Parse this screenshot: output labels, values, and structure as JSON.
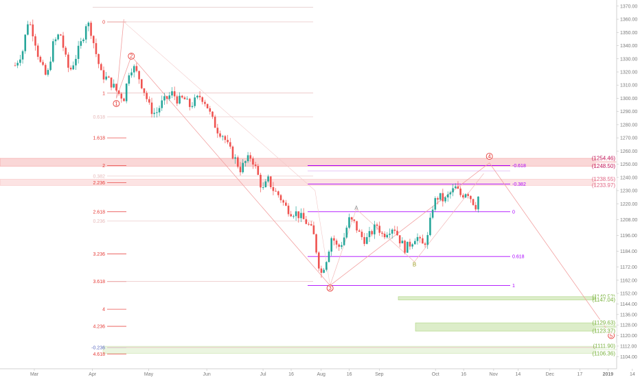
{
  "chart_data": {
    "type": "candlestick",
    "title": "",
    "xlabel": "",
    "ylabel": "",
    "ylim": [
      1100,
      1372
    ],
    "grid": false,
    "y_ticks": [
      1104,
      1112,
      1120,
      1128,
      1136,
      1144,
      1152,
      1162,
      1172,
      1184,
      1196,
      1208,
      1220,
      1230,
      1240,
      1250,
      1260,
      1270,
      1280,
      1290,
      1300,
      1310,
      1320,
      1330,
      1340,
      1350,
      1360,
      1370
    ],
    "y_tick_labels": [
      "1104.00",
      "1112.00",
      "1120.00",
      "1128.00",
      "1136.00",
      "1144.00",
      "1152.00",
      "1162.00",
      "1172.00",
      "1184.00",
      "1196.00",
      "1208.00",
      "1220.00",
      "1230.00",
      "1240.00",
      "1250.00",
      "1260.00",
      "1270.00",
      "1280.00",
      "1290.00",
      "1300.00",
      "1310.00",
      "1320.00",
      "1330.00",
      "1340.00",
      "1350.00",
      "1360.00",
      "1370.00"
    ],
    "x_labels": [
      {
        "label": "Mar",
        "day": 0
      },
      {
        "label": "Apr",
        "day": 31
      },
      {
        "label": "May",
        "day": 61
      },
      {
        "label": "Jun",
        "day": 92
      },
      {
        "label": "Jul",
        "day": 122
      },
      {
        "label": "16",
        "day": 137
      },
      {
        "label": "Aug",
        "day": 153
      },
      {
        "label": "16",
        "day": 168
      },
      {
        "label": "Sep",
        "day": 184
      },
      {
        "label": "Oct",
        "day": 214
      },
      {
        "label": "16",
        "day": 229
      },
      {
        "label": "Nov",
        "day": 245
      },
      {
        "label": "14",
        "day": 258
      },
      {
        "label": "Dec",
        "day": 275
      },
      {
        "label": "17",
        "day": 291
      },
      {
        "label": "2019",
        "day": 306
      },
      {
        "label": "14",
        "day": 319
      }
    ],
    "price_path": [
      [
        0,
        1325
      ],
      [
        4,
        1336
      ],
      [
        7,
        1360
      ],
      [
        10,
        1348
      ],
      [
        13,
        1328
      ],
      [
        17,
        1315
      ],
      [
        20,
        1340
      ],
      [
        24,
        1350
      ],
      [
        27,
        1330
      ],
      [
        29,
        1320
      ],
      [
        32,
        1330
      ],
      [
        36,
        1345
      ],
      [
        38,
        1358
      ],
      [
        40,
        1354
      ],
      [
        43,
        1335
      ],
      [
        46,
        1318
      ],
      [
        49,
        1315
      ],
      [
        52,
        1310
      ],
      [
        55,
        1304
      ],
      [
        58,
        1300
      ],
      [
        61,
        1322
      ],
      [
        63,
        1324
      ],
      [
        66,
        1316
      ],
      [
        69,
        1305
      ],
      [
        72,
        1292
      ],
      [
        75,
        1288
      ],
      [
        78,
        1296
      ],
      [
        81,
        1300
      ],
      [
        84,
        1304
      ],
      [
        87,
        1298
      ],
      [
        90,
        1300
      ],
      [
        93,
        1294
      ],
      [
        96,
        1298
      ],
      [
        99,
        1302
      ],
      [
        102,
        1296
      ],
      [
        105,
        1284
      ],
      [
        108,
        1276
      ],
      [
        111,
        1272
      ],
      [
        114,
        1262
      ],
      [
        117,
        1255
      ],
      [
        120,
        1246
      ],
      [
        123,
        1252
      ],
      [
        126,
        1256
      ],
      [
        129,
        1244
      ],
      [
        132,
        1230
      ],
      [
        135,
        1238
      ],
      [
        138,
        1230
      ],
      [
        141,
        1226
      ],
      [
        144,
        1218
      ],
      [
        147,
        1214
      ],
      [
        150,
        1213
      ],
      [
        153,
        1209
      ],
      [
        156,
        1205
      ],
      [
        159,
        1198
      ],
      [
        161,
        1182
      ],
      [
        163,
        1166
      ],
      [
        166,
        1178
      ],
      [
        169,
        1196
      ],
      [
        172,
        1186
      ],
      [
        175,
        1192
      ],
      [
        178,
        1208
      ],
      [
        181,
        1205
      ],
      [
        184,
        1196
      ],
      [
        187,
        1192
      ],
      [
        190,
        1198
      ],
      [
        193,
        1204
      ],
      [
        196,
        1196
      ],
      [
        199,
        1200
      ],
      [
        202,
        1203
      ],
      [
        205,
        1193
      ],
      [
        208,
        1186
      ],
      [
        211,
        1190
      ],
      [
        214,
        1196
      ],
      [
        217,
        1188
      ],
      [
        220,
        1194
      ],
      [
        223,
        1220
      ],
      [
        226,
        1226
      ],
      [
        229,
        1222
      ],
      [
        232,
        1228
      ],
      [
        235,
        1232
      ],
      [
        238,
        1226
      ],
      [
        241,
        1230
      ],
      [
        244,
        1222
      ],
      [
        246,
        1218
      ],
      [
        248,
        1232
      ]
    ],
    "fib_extension_labels": [
      {
        "label": "0",
        "value": 1358,
        "color": "#e53935"
      },
      {
        "label": "1",
        "value": 1304,
        "color": "#e53935"
      },
      {
        "label": "0.618",
        "value": 1286,
        "color": "#e6b8b8"
      },
      {
        "label": "1.618",
        "value": 1270,
        "color": "#e53935"
      },
      {
        "label": "2",
        "value": 1249,
        "color": "#e53935"
      },
      {
        "label": "0.382",
        "value": 1241,
        "color": "#e6b8b8"
      },
      {
        "label": "2.236",
        "value": 1236,
        "color": "#e53935"
      },
      {
        "label": "2.618",
        "value": 1214,
        "color": "#e53935"
      },
      {
        "label": "0.236",
        "value": 1207,
        "color": "#e6b8b8"
      },
      {
        "label": "3.236",
        "value": 1182,
        "color": "#e53935"
      },
      {
        "label": "3.618",
        "value": 1161,
        "color": "#e53935"
      },
      {
        "label": "4",
        "value": 1140,
        "color": "#e53935"
      },
      {
        "label": "4.236",
        "value": 1127,
        "color": "#e53935"
      },
      {
        "label": "-0.236",
        "value": 1111,
        "color": "#5c6bc0"
      },
      {
        "label": "4.618",
        "value": 1106,
        "color": "#e53935"
      }
    ],
    "fib_retracement_labels": [
      {
        "label": "-0.618",
        "value": 1249
      },
      {
        "label": "-0.382",
        "value": 1235
      },
      {
        "label": "0",
        "value": 1214
      },
      {
        "label": "0.618",
        "value": 1180
      },
      {
        "label": "1",
        "value": 1158
      }
    ],
    "wave_labels": [
      {
        "label": "1",
        "day": 54,
        "value": 1296
      },
      {
        "label": "2",
        "day": 62,
        "value": 1332
      },
      {
        "label": "3",
        "day": 168,
        "value": 1156
      },
      {
        "label": "4",
        "day": 253,
        "value": 1256
      },
      {
        "label": "5",
        "day": 318,
        "value": 1120
      },
      {
        "label": "A",
        "day": 182,
        "value": 1217
      },
      {
        "label": "B",
        "day": 213,
        "value": 1174
      }
    ],
    "price_boxes": [
      {
        "label": "(1254.46)",
        "value": 1254.46,
        "color": "#c2185b"
      },
      {
        "label": "(1248.50)",
        "value": 1248.5,
        "color": "#c2185b"
      },
      {
        "label": "(1238.55)",
        "value": 1238.55,
        "color": "#e06a88"
      },
      {
        "label": "(1233.97)",
        "value": 1233.97,
        "color": "#e06a88"
      },
      {
        "label": "(1149.52)",
        "value": 1149.52,
        "color": "#7cb342"
      },
      {
        "label": "(1147.04)",
        "value": 1147.04,
        "color": "#7cb342"
      },
      {
        "label": "(1129.63)",
        "value": 1129.63,
        "color": "#7cb342"
      },
      {
        "label": "(1123.37)",
        "value": 1123.37,
        "color": "#7cb342"
      },
      {
        "label": "(1111.90)",
        "value": 1111.9,
        "color": "#7cb342"
      },
      {
        "label": "(1106.36)",
        "value": 1106.36,
        "color": "#7cb342"
      }
    ],
    "zones": [
      {
        "from": 1248.5,
        "to": 1254.46,
        "color": "#f28b8b"
      },
      {
        "from": 1233.97,
        "to": 1238.55,
        "color": "#f5b0b0"
      },
      {
        "from": 1147.04,
        "to": 1149.52,
        "color": "#9ccc65"
      },
      {
        "from": 1123.37,
        "to": 1129.63,
        "color": "#9ccc65"
      },
      {
        "from": 1106.36,
        "to": 1111.9,
        "color": "#c5e1a5"
      }
    ],
    "colors": {
      "up": "#26a69a",
      "down": "#ef5350",
      "purple": "#aa00ff",
      "axis_text": "#7a7a7a"
    }
  }
}
